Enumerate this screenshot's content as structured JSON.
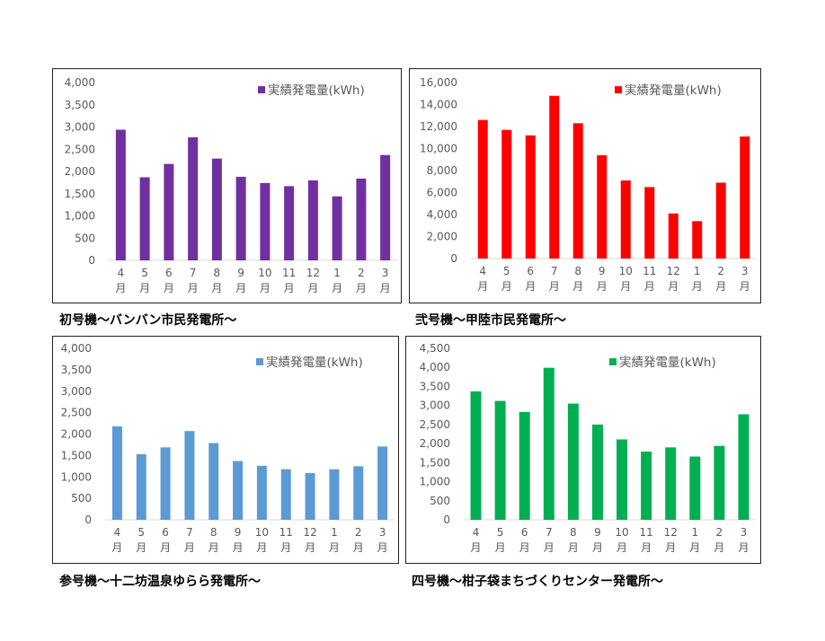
{
  "chart_data": [
    {
      "type": "bar",
      "caption": "初号機～バンバン市民発電所～",
      "legend": "実績発電量(kWh)",
      "color": "#7030A0",
      "categories": [
        [
          "4",
          "月"
        ],
        [
          "5",
          "月"
        ],
        [
          "6",
          "月"
        ],
        [
          "7",
          "月"
        ],
        [
          "8",
          "月"
        ],
        [
          "9",
          "月"
        ],
        [
          "10",
          "月"
        ],
        [
          "11",
          "月"
        ],
        [
          "12",
          "月"
        ],
        [
          "1",
          "月"
        ],
        [
          "2",
          "月"
        ],
        [
          "3",
          "月"
        ]
      ],
      "values": [
        2940,
        1870,
        2170,
        2770,
        2290,
        1880,
        1740,
        1670,
        1800,
        1440,
        1840,
        2370
      ],
      "ylim": [
        0,
        4000
      ],
      "yticks": [
        "0",
        "500",
        "1,000",
        "1,500",
        "2,000",
        "2,500",
        "3,000",
        "3,500",
        "4,000"
      ],
      "legend_position": "top-right",
      "grid": false
    },
    {
      "type": "bar",
      "caption": "弐号機～甲陸市民発電所～",
      "legend": "実績発電量(kWh)",
      "color": "#FF0000",
      "categories": [
        [
          "4",
          "月"
        ],
        [
          "5",
          "月"
        ],
        [
          "6",
          "月"
        ],
        [
          "7",
          "月"
        ],
        [
          "8",
          "月"
        ],
        [
          "9",
          "月"
        ],
        [
          "10",
          "月"
        ],
        [
          "11",
          "月"
        ],
        [
          "12",
          "月"
        ],
        [
          "1",
          "月"
        ],
        [
          "2",
          "月"
        ],
        [
          "3",
          "月"
        ]
      ],
      "values": [
        12600,
        11700,
        11200,
        14800,
        12300,
        9400,
        7100,
        6500,
        4100,
        3400,
        6900,
        11100
      ],
      "ylim": [
        0,
        16000
      ],
      "yticks": [
        "0",
        "2,000",
        "4,000",
        "6,000",
        "8,000",
        "10,000",
        "12,000",
        "14,000",
        "16,000"
      ],
      "legend_position": "top-right",
      "grid": false
    },
    {
      "type": "bar",
      "caption": "参号機～十二坊温泉ゆらら発電所～",
      "legend": "実績発電量(kWh)",
      "color": "#5B9BD5",
      "categories": [
        [
          "4",
          "月"
        ],
        [
          "5",
          "月"
        ],
        [
          "6",
          "月"
        ],
        [
          "7",
          "月"
        ],
        [
          "8",
          "月"
        ],
        [
          "9",
          "月"
        ],
        [
          "10",
          "月"
        ],
        [
          "11",
          "月"
        ],
        [
          "12",
          "月"
        ],
        [
          "1",
          "月"
        ],
        [
          "2",
          "月"
        ],
        [
          "3",
          "月"
        ]
      ],
      "values": [
        2180,
        1530,
        1690,
        2070,
        1790,
        1370,
        1260,
        1180,
        1090,
        1180,
        1250,
        1710
      ],
      "ylim": [
        0,
        4000
      ],
      "yticks": [
        "0",
        "500",
        "1,000",
        "1,500",
        "2,000",
        "2,500",
        "3,000",
        "3,500",
        "4,000"
      ],
      "legend_position": "top-right",
      "grid": false
    },
    {
      "type": "bar",
      "caption": "四号機～柑子袋まちづくりセンター発電所～",
      "legend": "実績発電量(kWh)",
      "color": "#00B050",
      "categories": [
        [
          "4",
          "月"
        ],
        [
          "5",
          "月"
        ],
        [
          "6",
          "月"
        ],
        [
          "7",
          "月"
        ],
        [
          "8",
          "月"
        ],
        [
          "9",
          "月"
        ],
        [
          "10",
          "月"
        ],
        [
          "11",
          "月"
        ],
        [
          "12",
          "月"
        ],
        [
          "1",
          "月"
        ],
        [
          "2",
          "月"
        ],
        [
          "3",
          "月"
        ]
      ],
      "values": [
        3370,
        3120,
        2830,
        3990,
        3050,
        2500,
        2110,
        1790,
        1900,
        1660,
        1940,
        2770
      ],
      "ylim": [
        0,
        4500
      ],
      "yticks": [
        "0",
        "500",
        "1,000",
        "1,500",
        "2,000",
        "2,500",
        "3,000",
        "3,500",
        "4,000",
        "4,500"
      ],
      "legend_position": "top-right",
      "grid": false
    }
  ]
}
